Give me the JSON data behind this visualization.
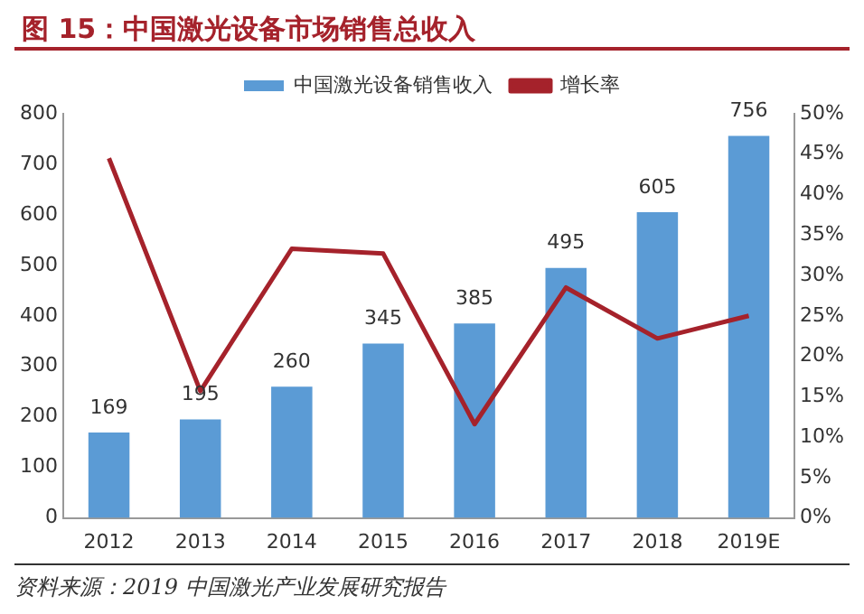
{
  "chart_data": {
    "type": "bar",
    "title": "图 15：中国激光设备市场销售总收入",
    "categories": [
      "2012",
      "2013",
      "2014",
      "2015",
      "2016",
      "2017",
      "2018",
      "2019E"
    ],
    "series": [
      {
        "name": "中国激光设备销售收入",
        "color": "#5b9bd5",
        "values": [
          169,
          195,
          260,
          345,
          385,
          495,
          605,
          756
        ],
        "value_labels": [
          "169",
          "195",
          "260",
          "345",
          "385",
          "495",
          "605",
          "756"
        ]
      },
      {
        "name": "增长率",
        "type": "line",
        "axis": "y2",
        "color": "#a5222b",
        "values": [
          44.5,
          15.7,
          33.3,
          32.7,
          11.6,
          28.5,
          22.2,
          25.0
        ]
      }
    ],
    "ylim": [
      0,
      800
    ],
    "yticks": [
      0,
      100,
      200,
      300,
      400,
      500,
      600,
      700,
      800
    ],
    "y2lim": [
      0,
      50
    ],
    "y2ticks": [
      {
        "value": 0,
        "label": "0%"
      },
      {
        "value": 5,
        "label": "5%"
      },
      {
        "value": 10,
        "label": "10%"
      },
      {
        "value": 15,
        "label": "15%"
      },
      {
        "value": 20,
        "label": "20%"
      },
      {
        "value": 25,
        "label": "25%"
      },
      {
        "value": 30,
        "label": "30%"
      },
      {
        "value": 35,
        "label": "35%"
      },
      {
        "value": 40,
        "label": "40%"
      },
      {
        "value": 45,
        "label": "45%"
      },
      {
        "value": 50,
        "label": "50%"
      }
    ],
    "legend": "top",
    "grid": false,
    "marker": "none",
    "annotations": [
      "资料来源：2019 中国激光产业发展研究报告"
    ]
  }
}
